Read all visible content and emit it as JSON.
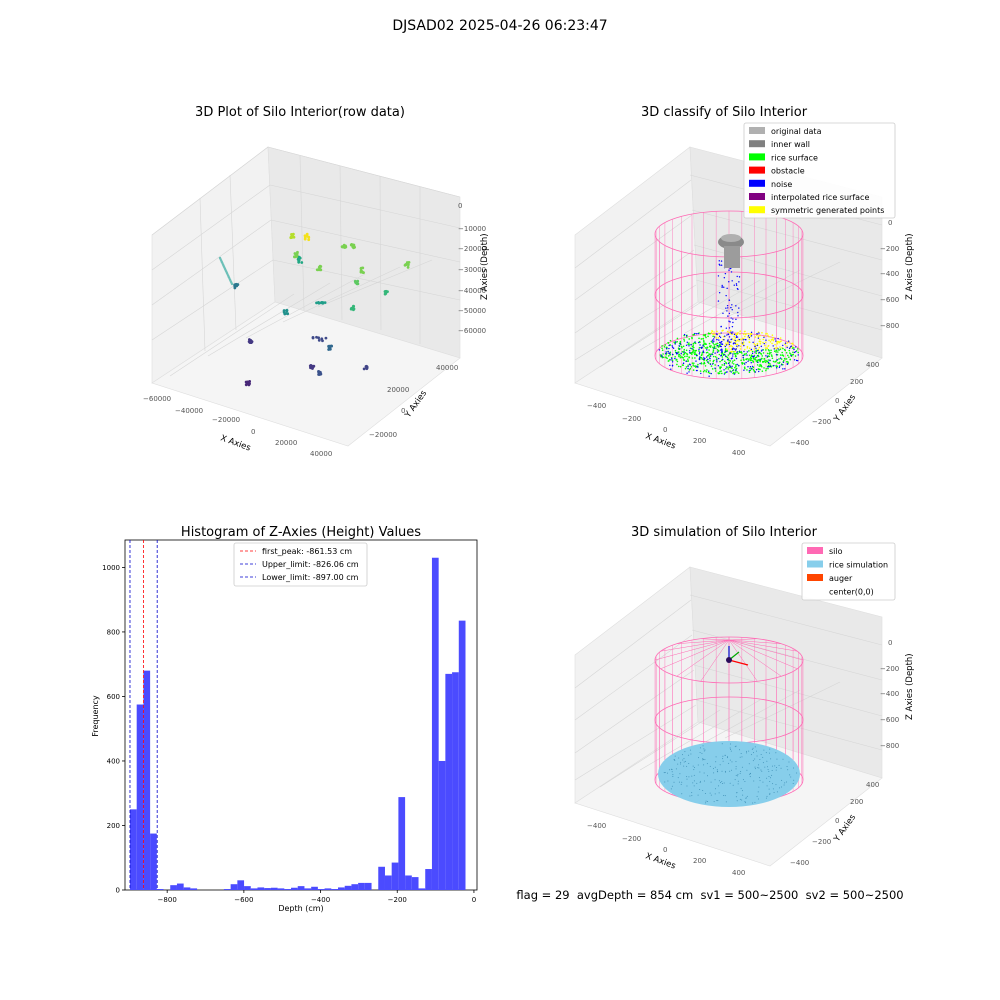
{
  "figure": {
    "suptitle": "DJSAD02 2025-04-26 06:23:47",
    "footer": "flag = 29  avgDepth = 854 cm  sv1 = 500~2500  sv2 = 500~2500"
  },
  "panels": {
    "raw": {
      "title": "3D Plot of Silo Interior(row data)",
      "xlabel": "X Axies",
      "ylabel": "Y Axies",
      "zlabel": "Z Axies (Depth)",
      "xticks": [
        "−60000",
        "−40000",
        "−20000",
        "0",
        "20000",
        "40000"
      ],
      "yticks": [
        "−20000",
        "0",
        "20000",
        "40000"
      ],
      "zticks": [
        "0",
        "−10000",
        "−20000",
        "−30000",
        "−40000",
        "−50000",
        "−60000"
      ]
    },
    "classify": {
      "title": "3D classify of Silo Interior",
      "xlabel": "X Axies",
      "ylabel": "Y Axies",
      "zlabel": "Z Axies (Depth)",
      "xticks": [
        "−400",
        "−200",
        "0",
        "200",
        "400"
      ],
      "yticks": [
        "−400",
        "−200",
        "0",
        "200",
        "400"
      ],
      "zticks": [
        "0",
        "−200",
        "−400",
        "−600",
        "−800"
      ],
      "legend": [
        {
          "label": "original data",
          "color": "#b0b0b0"
        },
        {
          "label": "inner wall",
          "color": "#808080"
        },
        {
          "label": "rice surface",
          "color": "#00ff00"
        },
        {
          "label": "obstacle",
          "color": "#ff0000"
        },
        {
          "label": "noise",
          "color": "#0000ff"
        },
        {
          "label": "interpolated rice surface",
          "color": "#800080"
        },
        {
          "label": "symmetric generated points",
          "color": "#ffff00"
        }
      ]
    },
    "simulation": {
      "title": "3D simulation of Silo Interior",
      "xlabel": "X Axies",
      "ylabel": "Y Axies",
      "zlabel": "Z Axies (Depth)",
      "xticks": [
        "−400",
        "−200",
        "0",
        "200",
        "400"
      ],
      "yticks": [
        "−400",
        "−200",
        "0",
        "200",
        "400"
      ],
      "zticks": [
        "0",
        "−200",
        "−400",
        "−600",
        "−800"
      ],
      "legend": [
        {
          "label": "silo",
          "color": "#ff69b4"
        },
        {
          "label": "rice simulation",
          "color": "#87ceeb"
        },
        {
          "label": "auger",
          "color": "#ff4500"
        },
        {
          "label": "center(0,0)",
          "color": "#ffffff"
        }
      ]
    }
  },
  "chart_data": {
    "type": "bar",
    "title": "Histogram of Z-Axies (Height) Values",
    "xlabel": "Depth (cm)",
    "ylabel": "Frequency",
    "xlim": [
      -910,
      8
    ],
    "ylim": [
      0,
      1085
    ],
    "xticks": [
      -800,
      -600,
      -400,
      -200,
      0
    ],
    "yticks": [
      0,
      200,
      400,
      600,
      800,
      1000
    ],
    "bin_width": 17.5,
    "bins": [
      {
        "x": -897.0,
        "count": 250
      },
      {
        "x": -879.5,
        "count": 575
      },
      {
        "x": -862.0,
        "count": 680
      },
      {
        "x": -844.5,
        "count": 175
      },
      {
        "x": -827.0,
        "count": 3
      },
      {
        "x": -792.0,
        "count": 15
      },
      {
        "x": -774.5,
        "count": 20
      },
      {
        "x": -757.0,
        "count": 8
      },
      {
        "x": -739.5,
        "count": 5
      },
      {
        "x": -652.0,
        "count": 3
      },
      {
        "x": -634.5,
        "count": 18
      },
      {
        "x": -617.0,
        "count": 30
      },
      {
        "x": -599.5,
        "count": 12
      },
      {
        "x": -582.0,
        "count": 5
      },
      {
        "x": -564.5,
        "count": 8
      },
      {
        "x": -547.0,
        "count": 6
      },
      {
        "x": -529.5,
        "count": 7
      },
      {
        "x": -512.0,
        "count": 5
      },
      {
        "x": -494.5,
        "count": 3
      },
      {
        "x": -477.0,
        "count": 7
      },
      {
        "x": -459.5,
        "count": 12
      },
      {
        "x": -442.0,
        "count": 5
      },
      {
        "x": -424.5,
        "count": 10
      },
      {
        "x": -407.0,
        "count": 3
      },
      {
        "x": -389.5,
        "count": 5
      },
      {
        "x": -372.0,
        "count": 3
      },
      {
        "x": -354.5,
        "count": 8
      },
      {
        "x": -337.0,
        "count": 13
      },
      {
        "x": -319.5,
        "count": 18
      },
      {
        "x": -302.0,
        "count": 22
      },
      {
        "x": -284.5,
        "count": 22
      },
      {
        "x": -249.5,
        "count": 72
      },
      {
        "x": -232.0,
        "count": 45
      },
      {
        "x": -214.5,
        "count": 85
      },
      {
        "x": -197.0,
        "count": 288
      },
      {
        "x": -179.5,
        "count": 45
      },
      {
        "x": -162.0,
        "count": 40
      },
      {
        "x": -144.5,
        "count": 5
      },
      {
        "x": -127.0,
        "count": 65
      },
      {
        "x": -109.5,
        "count": 1030
      },
      {
        "x": -92.0,
        "count": 400
      },
      {
        "x": -74.5,
        "count": 670
      },
      {
        "x": -57.0,
        "count": 675
      },
      {
        "x": -39.5,
        "count": 835
      }
    ],
    "bar_color": "#4b4bff",
    "vlines": [
      {
        "label": "first_peak: -861.53 cm",
        "x": -861.53,
        "color": "#ff0000"
      },
      {
        "label": "Upper_limit: -826.06 cm",
        "x": -826.06,
        "color": "#0000cc"
      },
      {
        "label": "Lower_limit: -897.00 cm",
        "x": -897.0,
        "color": "#0000cc"
      }
    ],
    "legend_position": "upper center"
  }
}
